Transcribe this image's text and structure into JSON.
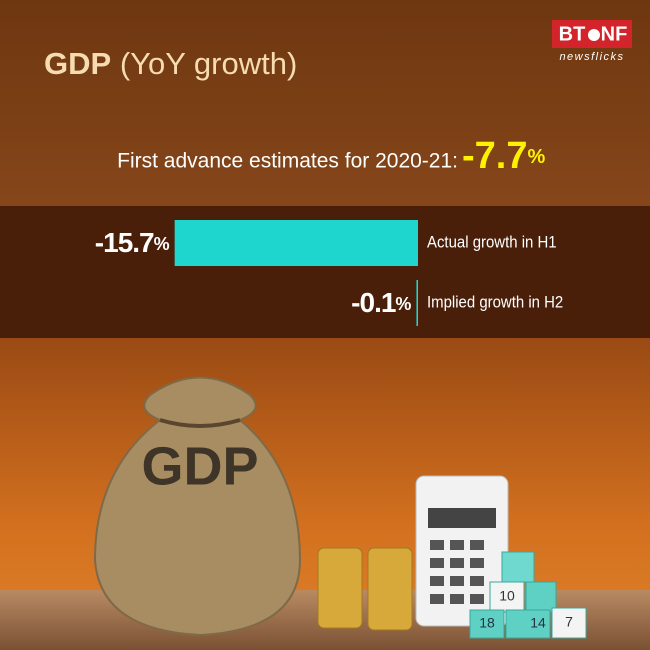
{
  "chart_data": {
    "type": "bar",
    "orientation": "horizontal",
    "title": "GDP",
    "subtitle": "(YoY growth)",
    "annotation": {
      "text": "First advance estimates for 2020-21:",
      "value": -7.7,
      "label": "-7.7%"
    },
    "categories": [
      "Actual growth in H1",
      "Implied growth in H2"
    ],
    "values": [
      -15.7,
      -0.1
    ],
    "value_labels": [
      "-15.7%",
      "-0.1%"
    ],
    "color": "#1fd6cf",
    "xlim": [
      -16,
      0
    ],
    "brand": [
      "BT",
      "NF",
      "newsflicks"
    ],
    "image_text": "GDP",
    "dice": [
      "10",
      "18",
      "14",
      "7"
    ]
  }
}
